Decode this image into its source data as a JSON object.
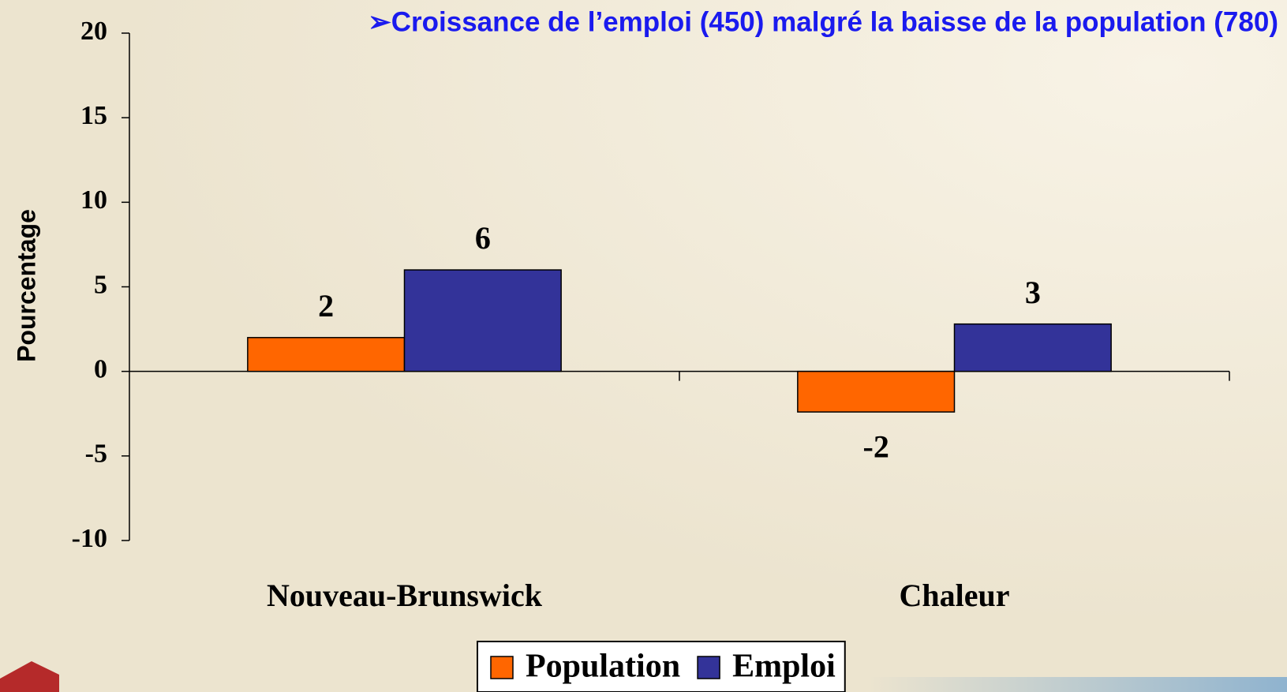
{
  "chart_data": {
    "type": "bar",
    "title": "➢Croissance de l’emploi (450) malgré la baisse de la population (780)",
    "y_label": "Pourcentage",
    "categories": [
      "Nouveau-Brunswick",
      "Chaleur"
    ],
    "series": [
      {
        "name": "Population",
        "color": "#ff6600",
        "values": [
          2,
          -2.4
        ],
        "value_labels": [
          "2",
          "-2"
        ]
      },
      {
        "name": "Emploi",
        "color": "#333399",
        "values": [
          6,
          2.8
        ],
        "value_labels": [
          "6",
          "3"
        ]
      }
    ],
    "ylim": [
      -10,
      20
    ],
    "yticks": [
      -10,
      -5,
      0,
      5,
      10,
      15,
      20
    ],
    "legend": "bottom"
  }
}
